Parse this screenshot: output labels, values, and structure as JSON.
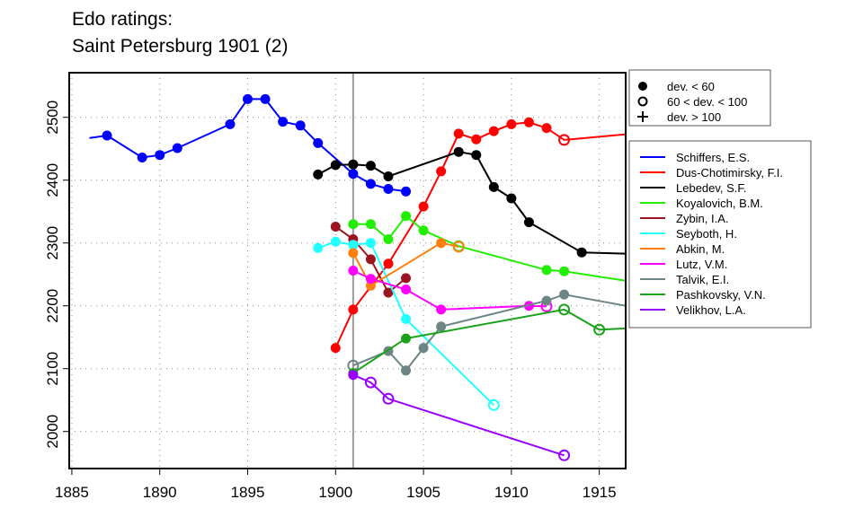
{
  "chart_data": {
    "type": "line",
    "title": [
      "Edo ratings:",
      "Saint Petersburg 1901 (2)"
    ],
    "xlabel": "",
    "ylabel": "",
    "xlim": [
      1884.85,
      1916.5
    ],
    "ylim": [
      1941,
      2571
    ],
    "xticks": [
      1885,
      1890,
      1895,
      1900,
      1905,
      1910,
      1915
    ],
    "yticks": [
      2000,
      2100,
      2200,
      2300,
      2400,
      2500
    ],
    "grid": "dotted",
    "marker_line_year": 1901,
    "marker_legend": [
      {
        "symbol": "filled",
        "label": "dev. < 60"
      },
      {
        "symbol": "open",
        "label": "60 < dev. < 100"
      },
      {
        "symbol": "plus",
        "label": "dev. > 100"
      }
    ],
    "series": [
      {
        "name": "Schiffers, E.S.",
        "color": "#0000ff",
        "points": [
          [
            1886,
            2467,
            "n"
          ],
          [
            1887,
            2471,
            "f"
          ],
          [
            1889,
            2436,
            "f"
          ],
          [
            1890,
            2440,
            "f"
          ],
          [
            1891,
            2451,
            "f"
          ],
          [
            1894,
            2489,
            "f"
          ],
          [
            1895,
            2529,
            "f"
          ],
          [
            1896,
            2529,
            "f"
          ],
          [
            1897,
            2493,
            "f"
          ],
          [
            1898,
            2487,
            "f"
          ],
          [
            1899,
            2459,
            "f"
          ],
          [
            1901,
            2410,
            "f"
          ],
          [
            1902,
            2394,
            "f"
          ],
          [
            1903,
            2386,
            "f"
          ],
          [
            1904,
            2382,
            "f"
          ]
        ]
      },
      {
        "name": "Dus-Chotimirsky, F.I.",
        "color": "#ff0000",
        "points": [
          [
            1900,
            2133,
            "f"
          ],
          [
            1901,
            2194,
            "f"
          ],
          [
            1903,
            2267,
            "f"
          ],
          [
            1905,
            2358,
            "f"
          ],
          [
            1906,
            2414,
            "f"
          ],
          [
            1907,
            2474,
            "f"
          ],
          [
            1908,
            2465,
            "f"
          ],
          [
            1909,
            2478,
            "f"
          ],
          [
            1910,
            2489,
            "f"
          ],
          [
            1911,
            2492,
            "f"
          ],
          [
            1912,
            2483,
            "f"
          ],
          [
            1913,
            2464,
            "o"
          ],
          [
            1916.5,
            2473,
            "n"
          ]
        ]
      },
      {
        "name": "Lebedev, S.F.",
        "color": "#000000",
        "points": [
          [
            1899,
            2409,
            "f"
          ],
          [
            1900,
            2424,
            "f"
          ],
          [
            1901,
            2425,
            "f"
          ],
          [
            1902,
            2423,
            "f"
          ],
          [
            1903,
            2406,
            "f"
          ],
          [
            1907,
            2445,
            "f"
          ],
          [
            1908,
            2440,
            "f"
          ],
          [
            1909,
            2389,
            "f"
          ],
          [
            1910,
            2371,
            "f"
          ],
          [
            1911,
            2333,
            "f"
          ],
          [
            1914,
            2285,
            "f"
          ],
          [
            1916.5,
            2283,
            "n"
          ]
        ]
      },
      {
        "name": "Koyalovich, B.M.",
        "color": "#22ee00",
        "points": [
          [
            1901,
            2330,
            "f"
          ],
          [
            1902,
            2330,
            "f"
          ],
          [
            1903,
            2306,
            "f"
          ],
          [
            1904,
            2343,
            "f"
          ],
          [
            1905,
            2320,
            "f"
          ],
          [
            1907,
            2295,
            "o"
          ],
          [
            1912,
            2257,
            "f"
          ],
          [
            1913,
            2255,
            "f"
          ],
          [
            1916.5,
            2240,
            "n"
          ]
        ]
      },
      {
        "name": "Zybin, I.A.",
        "color": "#9b1520",
        "points": [
          [
            1900,
            2326,
            "f"
          ],
          [
            1901,
            2306,
            "f"
          ],
          [
            1902,
            2274,
            "f"
          ],
          [
            1903,
            2221,
            "f"
          ],
          [
            1904,
            2244,
            "f"
          ]
        ]
      },
      {
        "name": "Seyboth, H.",
        "color": "#22ffff",
        "points": [
          [
            1899,
            2292,
            "f"
          ],
          [
            1900,
            2302,
            "f"
          ],
          [
            1901,
            2297,
            "f"
          ],
          [
            1902,
            2300,
            "f"
          ],
          [
            1904,
            2179,
            "f"
          ],
          [
            1909,
            2042,
            "o"
          ]
        ]
      },
      {
        "name": "Abkin, M.",
        "color": "#ff7f0e",
        "points": [
          [
            1901,
            2284,
            "f"
          ],
          [
            1902,
            2232,
            "f"
          ],
          [
            1906,
            2300,
            "f"
          ],
          [
            1907,
            2294,
            "o"
          ]
        ]
      },
      {
        "name": "Lutz, V.M.",
        "color": "#ff00ff",
        "points": [
          [
            1901,
            2256,
            "f"
          ],
          [
            1902,
            2243,
            "f"
          ],
          [
            1904,
            2226,
            "f"
          ],
          [
            1906,
            2194,
            "f"
          ],
          [
            1911,
            2200,
            "f"
          ],
          [
            1912,
            2199,
            "o"
          ]
        ]
      },
      {
        "name": "Talvik, E.I.",
        "color": "#6e8585",
        "points": [
          [
            1901,
            2105,
            "o"
          ],
          [
            1903,
            2128,
            "f"
          ],
          [
            1904,
            2097,
            "f"
          ],
          [
            1905,
            2133,
            "f"
          ],
          [
            1906,
            2167,
            "f"
          ],
          [
            1912,
            2208,
            "f"
          ],
          [
            1913,
            2218,
            "f"
          ],
          [
            1916.5,
            2200,
            "n"
          ]
        ]
      },
      {
        "name": "Pashkovsky, V.N.",
        "color": "#1aa31a",
        "points": [
          [
            1901,
            2093,
            "f"
          ],
          [
            1904,
            2148,
            "f"
          ],
          [
            1913,
            2194,
            "o"
          ],
          [
            1915,
            2162,
            "o"
          ],
          [
            1916.5,
            2164,
            "n"
          ]
        ]
      },
      {
        "name": "Velikhov, L.A.",
        "color": "#9900ff",
        "points": [
          [
            1901,
            2090,
            "f"
          ],
          [
            1902,
            2078,
            "o"
          ],
          [
            1903,
            2052,
            "o"
          ],
          [
            1913,
            1962,
            "o"
          ]
        ]
      }
    ]
  }
}
